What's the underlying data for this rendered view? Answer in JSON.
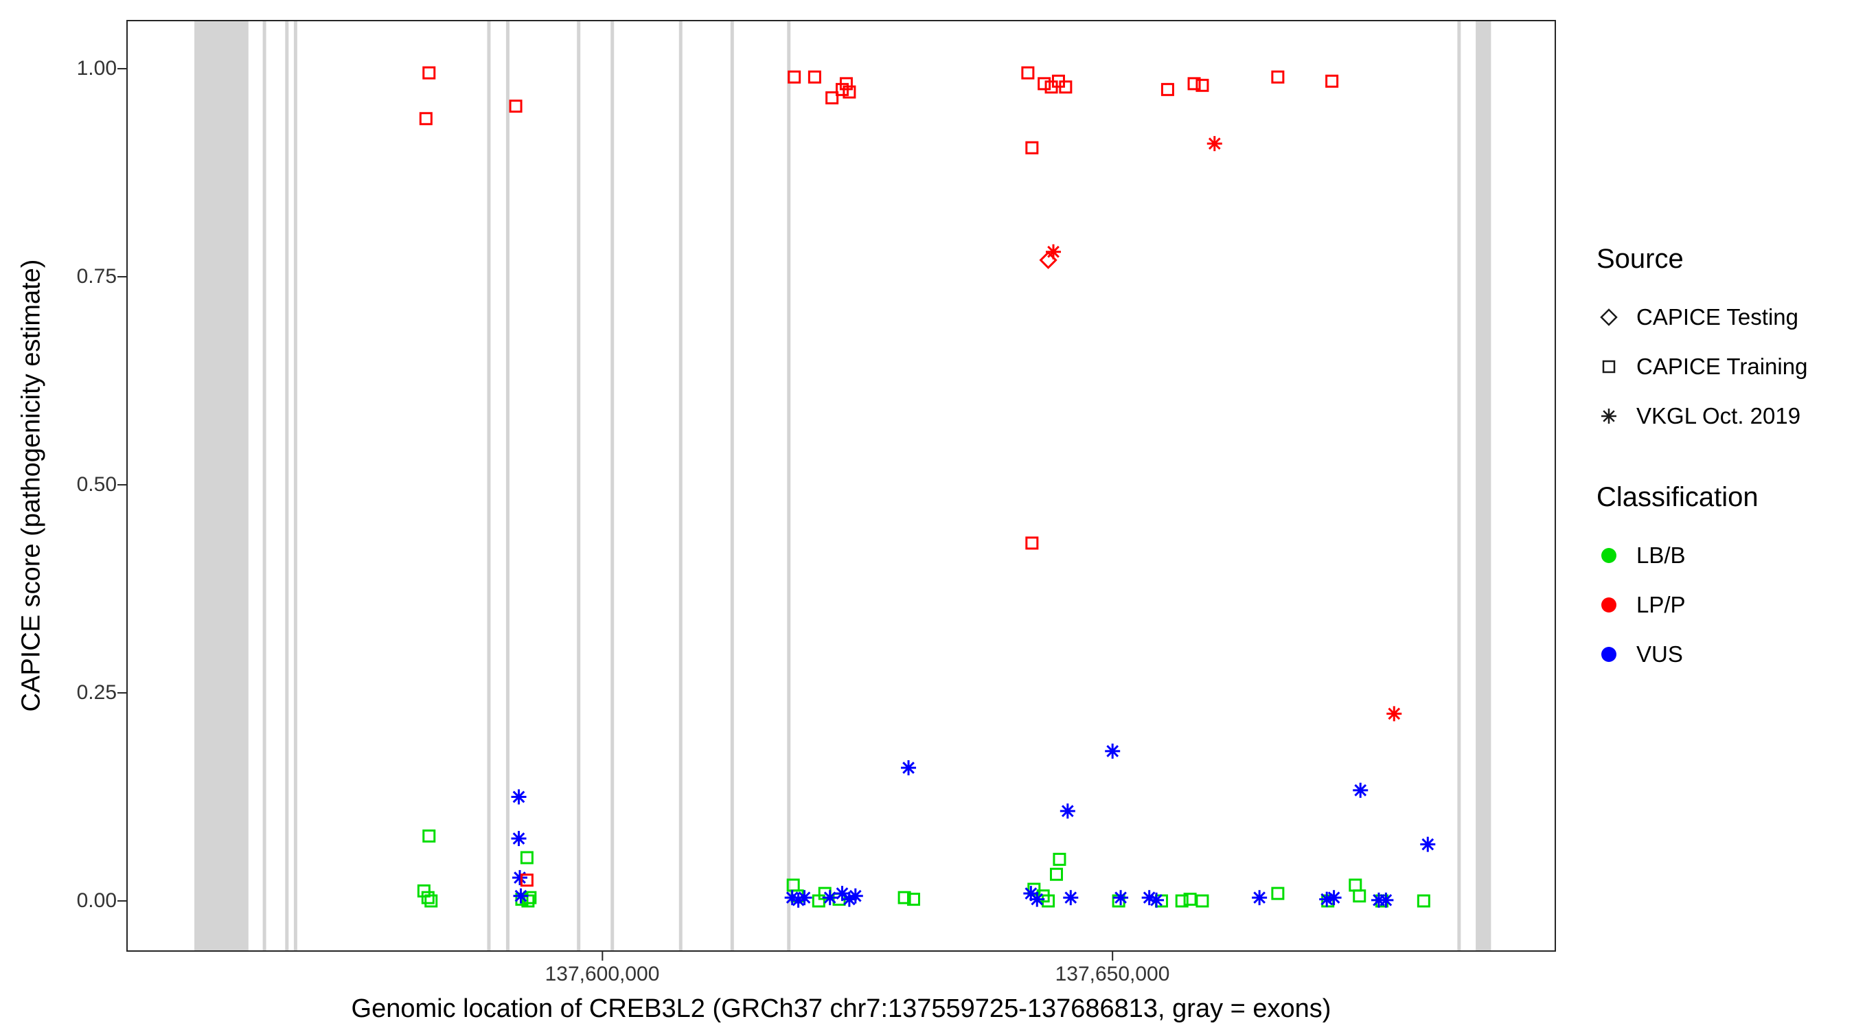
{
  "figure": {
    "legend": {
      "source": {
        "title": "Source",
        "items": [
          {
            "label": "CAPICE Testing",
            "shape": "diamond"
          },
          {
            "label": "CAPICE Training",
            "shape": "square"
          },
          {
            "label": "VKGL Oct. 2019",
            "shape": "asterisk"
          }
        ]
      },
      "classification": {
        "title": "Classification",
        "items": [
          {
            "label": "LB/B",
            "color": "#00DD00"
          },
          {
            "label": "LP/P",
            "color": "#FF0000"
          },
          {
            "label": "VUS",
            "color": "#0000FF"
          }
        ]
      }
    }
  },
  "chart_data": {
    "type": "scatter",
    "title": "",
    "xlabel": "Genomic location of CREB3L2 (GRCh37 chr7:137559725-137686813, gray = exons)",
    "ylabel": "CAPICE score (pathogenicity estimate)",
    "xlim": [
      137553400,
      137693400
    ],
    "ylim": [
      -0.0602,
      1.0578
    ],
    "grid": false,
    "legend_position": "right",
    "panel_border_color": "#262626",
    "exon_color": "#D4D4D4",
    "xticks": [
      {
        "value": 137600000,
        "label": "137,600,000"
      },
      {
        "value": 137650000,
        "label": "137,650,000"
      }
    ],
    "yticks": [
      {
        "value": 0.0,
        "label": "0.00"
      },
      {
        "value": 0.25,
        "label": "0.25"
      },
      {
        "value": 0.5,
        "label": "0.50"
      },
      {
        "value": 0.75,
        "label": "0.75"
      },
      {
        "value": 1.0,
        "label": "1.00"
      }
    ],
    "exons": [
      [
        137560000,
        137565300
      ],
      [
        137566700,
        137567000
      ],
      [
        137568900,
        137569200
      ],
      [
        137569750,
        137570050
      ],
      [
        137588700,
        137589000
      ],
      [
        137590550,
        137590850
      ],
      [
        137597500,
        137597800
      ],
      [
        137600800,
        137601100
      ],
      [
        137607500,
        137607800
      ],
      [
        137612550,
        137612850
      ],
      [
        137618100,
        137618400
      ],
      [
        137683800,
        137684100
      ],
      [
        137685600,
        137687100
      ]
    ],
    "series": [
      {
        "name": "LB/B CAPICE Training",
        "classification": "LB/B",
        "source": "CAPICE Training",
        "shape": "square",
        "color": "#00DD00",
        "points": [
          [
            137583000,
            0.078
          ],
          [
            137582500,
            0.012
          ],
          [
            137582900,
            0.004
          ],
          [
            137583200,
            0.0
          ],
          [
            137592600,
            0.052
          ],
          [
            137592100,
            0.002
          ],
          [
            137592700,
            0.0
          ],
          [
            137592900,
            0.004
          ],
          [
            137618700,
            0.019
          ],
          [
            137619100,
            0.006
          ],
          [
            137621200,
            0.0
          ],
          [
            137621800,
            0.009
          ],
          [
            137623200,
            0.002
          ],
          [
            137629600,
            0.004
          ],
          [
            137630500,
            0.002
          ],
          [
            137642300,
            0.014
          ],
          [
            137643200,
            0.006
          ],
          [
            137643700,
            0.0
          ],
          [
            137644500,
            0.032
          ],
          [
            137644800,
            0.05
          ],
          [
            137650600,
            0.0
          ],
          [
            137654800,
            0.0
          ],
          [
            137656800,
            0.0
          ],
          [
            137657600,
            0.002
          ],
          [
            137658800,
            0.0
          ],
          [
            137666200,
            0.009
          ],
          [
            137671100,
            0.0
          ],
          [
            137673800,
            0.019
          ],
          [
            137674200,
            0.006
          ],
          [
            137676400,
            0.0
          ],
          [
            137680500,
            0.0
          ]
        ]
      },
      {
        "name": "VUS VKGL Oct. 2019",
        "classification": "VUS",
        "source": "VKGL Oct. 2019",
        "shape": "asterisk",
        "color": "#0000FF",
        "points": [
          [
            137591800,
            0.125
          ],
          [
            137591800,
            0.075
          ],
          [
            137591900,
            0.028
          ],
          [
            137592000,
            0.006
          ],
          [
            137630000,
            0.16
          ],
          [
            137618600,
            0.004
          ],
          [
            137619200,
            0.001
          ],
          [
            137619800,
            0.004
          ],
          [
            137622300,
            0.004
          ],
          [
            137623500,
            0.009
          ],
          [
            137624200,
            0.002
          ],
          [
            137624800,
            0.006
          ],
          [
            137642000,
            0.009
          ],
          [
            137642600,
            0.002
          ],
          [
            137645600,
            0.108
          ],
          [
            137645900,
            0.004
          ],
          [
            137650000,
            0.18
          ],
          [
            137650800,
            0.004
          ],
          [
            137653600,
            0.004
          ],
          [
            137654300,
            0.001
          ],
          [
            137664400,
            0.004
          ],
          [
            137671000,
            0.002
          ],
          [
            137671700,
            0.004
          ],
          [
            137674300,
            0.133
          ],
          [
            137676100,
            0.001
          ],
          [
            137676800,
            0.001
          ],
          [
            137680900,
            0.068
          ]
        ]
      },
      {
        "name": "LP/P CAPICE Training",
        "classification": "LP/P",
        "source": "CAPICE Training",
        "shape": "square",
        "color": "#FF0000",
        "points": [
          [
            137583000,
            0.995
          ],
          [
            137582700,
            0.94
          ],
          [
            137591500,
            0.955
          ],
          [
            137618800,
            0.99
          ],
          [
            137620800,
            0.99
          ],
          [
            137622500,
            0.965
          ],
          [
            137623500,
            0.975
          ],
          [
            137623900,
            0.982
          ],
          [
            137624200,
            0.972
          ],
          [
            137641700,
            0.995
          ],
          [
            137643300,
            0.982
          ],
          [
            137644000,
            0.978
          ],
          [
            137644700,
            0.985
          ],
          [
            137645400,
            0.978
          ],
          [
            137642100,
            0.905
          ],
          [
            137642100,
            0.43
          ],
          [
            137655400,
            0.975
          ],
          [
            137658000,
            0.982
          ],
          [
            137658800,
            0.98
          ],
          [
            137666200,
            0.99
          ],
          [
            137671500,
            0.985
          ],
          [
            137592600,
            0.025
          ]
        ]
      },
      {
        "name": "LP/P CAPICE Testing",
        "classification": "LP/P",
        "source": "CAPICE Testing",
        "shape": "diamond",
        "color": "#FF0000",
        "points": [
          [
            137643700,
            0.77
          ]
        ]
      },
      {
        "name": "LP/P VKGL Oct. 2019",
        "classification": "LP/P",
        "source": "VKGL Oct. 2019",
        "shape": "asterisk",
        "color": "#FF0000",
        "points": [
          [
            137644200,
            0.78
          ],
          [
            137660000,
            0.91
          ],
          [
            137677600,
            0.225
          ]
        ]
      }
    ]
  }
}
